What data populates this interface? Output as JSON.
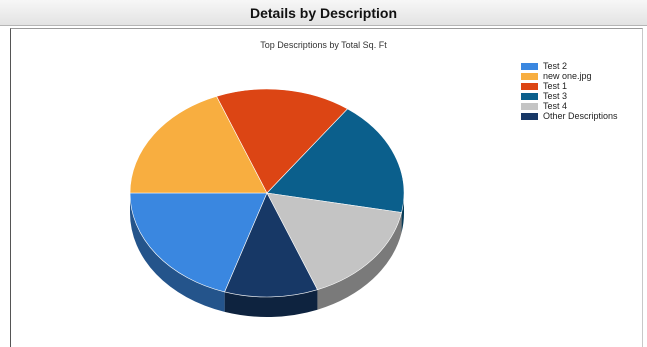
{
  "header": {
    "title": "Details by Description"
  },
  "chart_data": {
    "type": "pie",
    "title": "Top Descriptions by Total Sq. Ft",
    "legend_position": "top-right",
    "three_d": true,
    "slices": [
      {
        "label": "Test 2",
        "value": 20,
        "color": "#3a87e0"
      },
      {
        "label": "new one.jpg",
        "value": 19,
        "color": "#f8ae40"
      },
      {
        "label": "Test 1",
        "value": 16,
        "color": "#dc4514"
      },
      {
        "label": "Test 3",
        "value": 18,
        "color": "#0b5f8c"
      },
      {
        "label": "Test 4",
        "value": 16,
        "color": "#c4c4c4"
      },
      {
        "label": "Other Descriptions",
        "value": 11,
        "color": "#173866"
      }
    ]
  }
}
